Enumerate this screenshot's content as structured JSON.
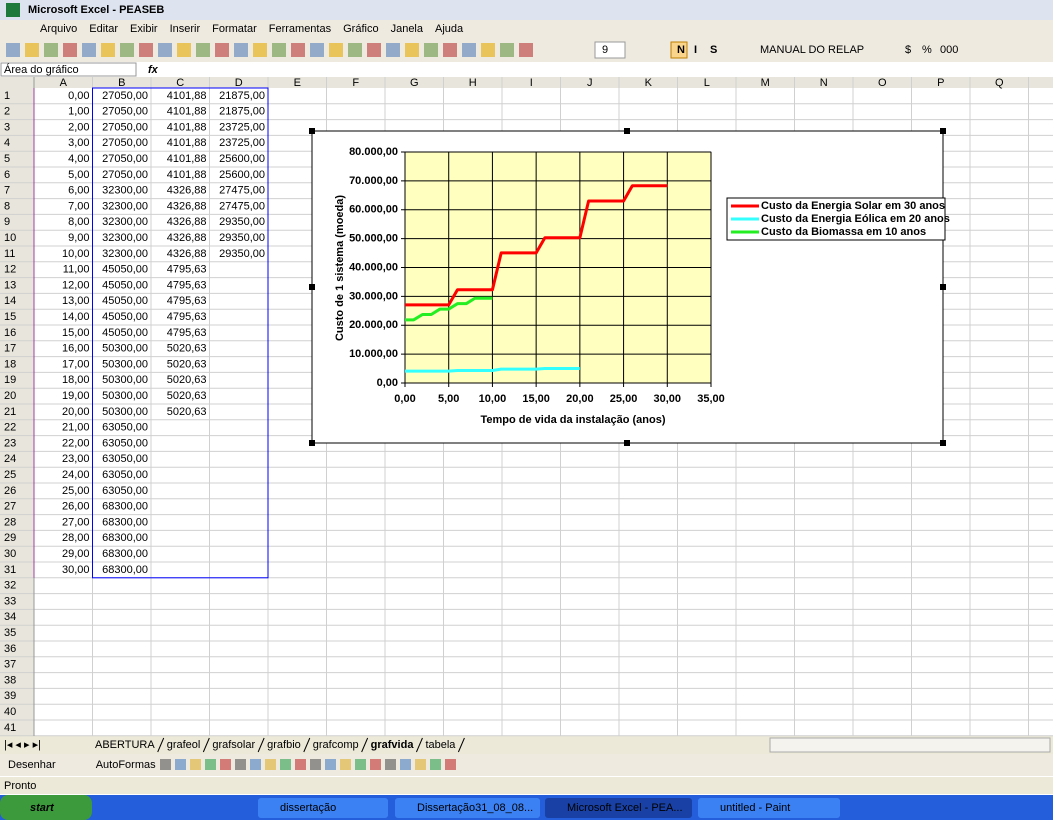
{
  "window": {
    "title": "Microsoft Excel - PEASEB"
  },
  "menu": [
    "Arquivo",
    "Editar",
    "Exibir",
    "Inserir",
    "Formatar",
    "Ferramentas",
    "Gráfico",
    "Janela",
    "Ajuda"
  ],
  "toolbar": {
    "font_size": "9",
    "bold": "N",
    "italic": "I",
    "underline": "S",
    "macro": "MANUAL DO RELAP",
    "currency": "$",
    "percent": "%",
    "thousands": "000"
  },
  "formula_bar": {
    "name_box": "Área do gráfico",
    "fx": "fx"
  },
  "sheet": {
    "columns": [
      "A",
      "B",
      "C",
      "D",
      "E",
      "F",
      "G",
      "H",
      "I",
      "J",
      "K",
      "L",
      "M",
      "N",
      "O",
      "P",
      "Q"
    ],
    "rows": [
      1,
      2,
      3,
      4,
      5,
      6,
      7,
      8,
      9,
      10,
      11,
      12,
      13,
      14,
      15,
      16,
      17,
      18,
      19,
      20,
      21,
      22,
      23,
      24,
      25,
      26,
      27,
      28,
      29,
      30,
      31,
      32,
      33,
      34,
      35,
      36,
      37,
      38,
      39,
      40,
      41
    ],
    "cells": [
      [
        "0,00",
        "27050,00",
        "4101,88",
        "21875,00"
      ],
      [
        "1,00",
        "27050,00",
        "4101,88",
        "21875,00"
      ],
      [
        "2,00",
        "27050,00",
        "4101,88",
        "23725,00"
      ],
      [
        "3,00",
        "27050,00",
        "4101,88",
        "23725,00"
      ],
      [
        "4,00",
        "27050,00",
        "4101,88",
        "25600,00"
      ],
      [
        "5,00",
        "27050,00",
        "4101,88",
        "25600,00"
      ],
      [
        "6,00",
        "32300,00",
        "4326,88",
        "27475,00"
      ],
      [
        "7,00",
        "32300,00",
        "4326,88",
        "27475,00"
      ],
      [
        "8,00",
        "32300,00",
        "4326,88",
        "29350,00"
      ],
      [
        "9,00",
        "32300,00",
        "4326,88",
        "29350,00"
      ],
      [
        "10,00",
        "32300,00",
        "4326,88",
        "29350,00"
      ],
      [
        "11,00",
        "45050,00",
        "4795,63"
      ],
      [
        "12,00",
        "45050,00",
        "4795,63"
      ],
      [
        "13,00",
        "45050,00",
        "4795,63"
      ],
      [
        "14,00",
        "45050,00",
        "4795,63"
      ],
      [
        "15,00",
        "45050,00",
        "4795,63"
      ],
      [
        "16,00",
        "50300,00",
        "5020,63"
      ],
      [
        "17,00",
        "50300,00",
        "5020,63"
      ],
      [
        "18,00",
        "50300,00",
        "5020,63"
      ],
      [
        "19,00",
        "50300,00",
        "5020,63"
      ],
      [
        "20,00",
        "50300,00",
        "5020,63"
      ],
      [
        "21,00",
        "63050,00"
      ],
      [
        "22,00",
        "63050,00"
      ],
      [
        "23,00",
        "63050,00"
      ],
      [
        "24,00",
        "63050,00"
      ],
      [
        "25,00",
        "63050,00"
      ],
      [
        "26,00",
        "68300,00"
      ],
      [
        "27,00",
        "68300,00"
      ],
      [
        "28,00",
        "68300,00"
      ],
      [
        "29,00",
        "68300,00"
      ],
      [
        "30,00",
        "68300,00"
      ]
    ]
  },
  "chart_data": {
    "type": "line",
    "xlabel": "Tempo de vida da instalação (anos)",
    "ylabel": "Custo de 1 sistema (moeda)",
    "x": [
      0,
      1,
      2,
      3,
      4,
      5,
      6,
      7,
      8,
      9,
      10,
      11,
      12,
      13,
      14,
      15,
      16,
      17,
      18,
      19,
      20,
      21,
      22,
      23,
      24,
      25,
      26,
      27,
      28,
      29,
      30
    ],
    "series": [
      {
        "name": "Custo da Energia Solar em 30 anos",
        "color": "#ff0000",
        "values": [
          27050,
          27050,
          27050,
          27050,
          27050,
          27050,
          32300,
          32300,
          32300,
          32300,
          32300,
          45050,
          45050,
          45050,
          45050,
          45050,
          50300,
          50300,
          50300,
          50300,
          50300,
          63050,
          63050,
          63050,
          63050,
          63050,
          68300,
          68300,
          68300,
          68300,
          68300
        ]
      },
      {
        "name": "Custo da Energia Eólica em 20 anos",
        "color": "#33ffff",
        "values": [
          4101.88,
          4101.88,
          4101.88,
          4101.88,
          4101.88,
          4101.88,
          4326.88,
          4326.88,
          4326.88,
          4326.88,
          4326.88,
          4795.63,
          4795.63,
          4795.63,
          4795.63,
          4795.63,
          5020.63,
          5020.63,
          5020.63,
          5020.63,
          5020.63,
          null,
          null,
          null,
          null,
          null,
          null,
          null,
          null,
          null,
          null
        ]
      },
      {
        "name": "Custo da Biomassa em 10 anos",
        "color": "#22ee22",
        "values": [
          21875,
          21875,
          23725,
          23725,
          25600,
          25600,
          27475,
          27475,
          29350,
          29350,
          29350,
          null,
          null,
          null,
          null,
          null,
          null,
          null,
          null,
          null,
          null,
          null,
          null,
          null,
          null,
          null,
          null,
          null,
          null,
          null,
          null
        ]
      }
    ],
    "xlim": [
      0,
      35
    ],
    "ylim": [
      0,
      80000
    ],
    "xticks": [
      {
        "value": 0,
        "label": "0,00"
      },
      {
        "value": 5,
        "label": "5,00"
      },
      {
        "value": 10,
        "label": "10,00"
      },
      {
        "value": 15,
        "label": "15,00"
      },
      {
        "value": 20,
        "label": "20,00"
      },
      {
        "value": 25,
        "label": "25,00"
      },
      {
        "value": 30,
        "label": "30,00"
      },
      {
        "value": 35,
        "label": "35,00"
      }
    ],
    "yticks": [
      {
        "value": 0,
        "label": "0,00"
      },
      {
        "value": 10000,
        "label": "10.000,00"
      },
      {
        "value": 20000,
        "label": "20.000,00"
      },
      {
        "value": 30000,
        "label": "30.000,00"
      },
      {
        "value": 40000,
        "label": "40.000,00"
      },
      {
        "value": 50000,
        "label": "50.000,00"
      },
      {
        "value": 60000,
        "label": "60.000,00"
      },
      {
        "value": 70000,
        "label": "70.000,00"
      },
      {
        "value": 80000,
        "label": "80.000,00"
      }
    ],
    "grid": true,
    "legend": "right",
    "plot_background": "#ffffc0"
  },
  "sheet_tabs": [
    "ABERTURA",
    "grafeol",
    "grafsolar",
    "grafbio",
    "grafcomp",
    "grafvida",
    "tabela"
  ],
  "active_tab": 5,
  "drawing_toolbar": [
    "Desenhar",
    "AutoFormas"
  ],
  "status": "Pronto",
  "taskbar": {
    "start": "start",
    "items": [
      "dissertação",
      "Dissertação31_08_08...",
      "Microsoft Excel - PEA...",
      "untitled - Paint"
    ],
    "active_item": 2
  }
}
